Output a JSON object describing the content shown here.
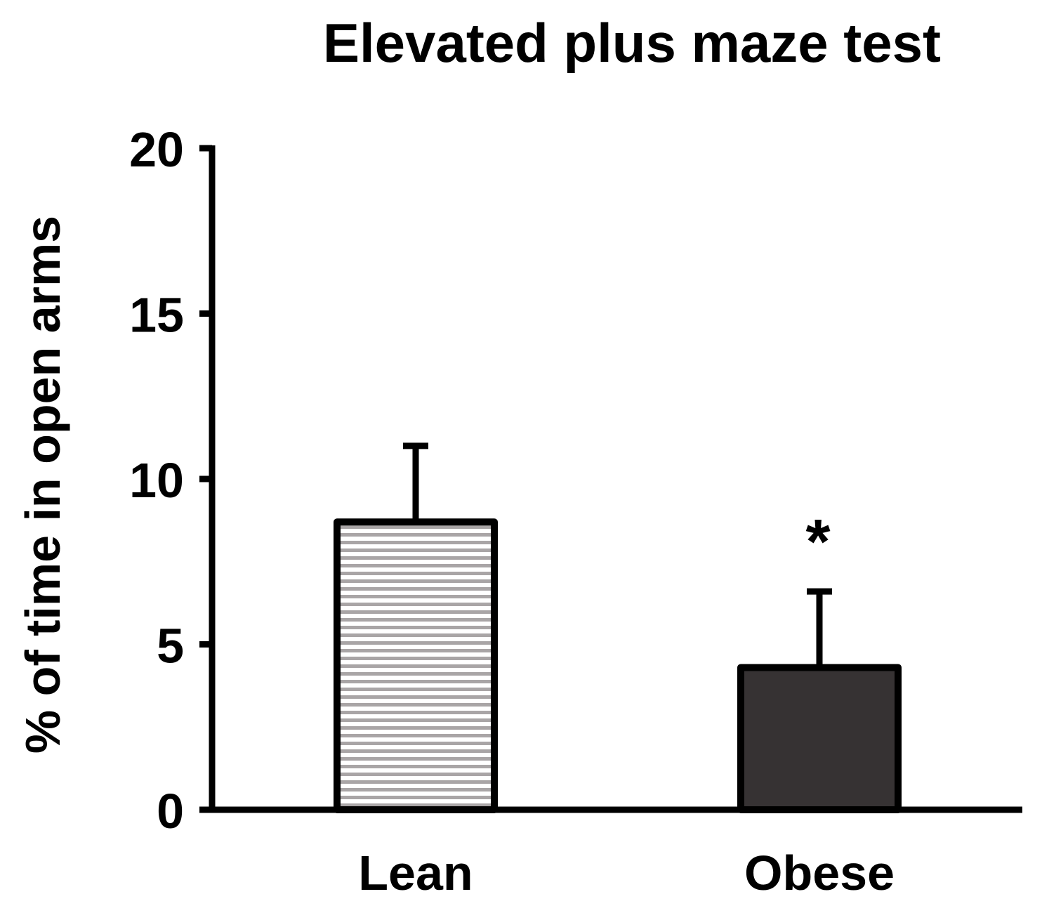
{
  "chart_data": {
    "type": "bar",
    "title": "Elevated plus maze test",
    "xlabel": "",
    "ylabel": "% of time in open arms",
    "ylim": [
      0,
      20
    ],
    "yticks": [
      0,
      5,
      10,
      15,
      20
    ],
    "categories": [
      "Lean",
      "Obese"
    ],
    "values": [
      8.7,
      4.3
    ],
    "errors": [
      2.3,
      2.3
    ],
    "annotations": [
      "",
      "*"
    ],
    "legend": "none",
    "grid": false,
    "colors": {
      "lean_fill_base": "#ffffff",
      "lean_fill_stripe": "#a9a5a6",
      "obese_fill": "#363233",
      "stroke": "#000000"
    },
    "patterns": [
      "horizontal-stripes",
      "solid"
    ]
  }
}
